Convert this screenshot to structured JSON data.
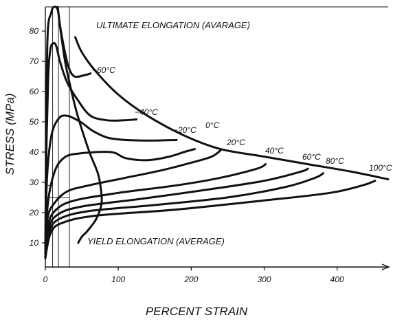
{
  "chart_data": {
    "type": "line",
    "title": "",
    "xlabel": "PERCENT STRAIN",
    "ylabel": "STRESS (MPa)",
    "xlim": [
      0,
      470
    ],
    "ylim": [
      2,
      88
    ],
    "x_ticks": [
      0,
      100,
      200,
      300,
      400
    ],
    "y_ticks": [
      10,
      20,
      30,
      40,
      50,
      60,
      70,
      80
    ],
    "grid": false,
    "annotations": [
      {
        "text": "ULTIMATE ELONGATION (AVARAGE)"
      },
      {
        "text": "YIELD ELONGATION (AVERAGE)"
      }
    ],
    "series": [
      {
        "name": "−60°C",
        "points": [
          [
            0,
            5
          ],
          [
            1,
            40
          ],
          [
            3,
            78
          ],
          [
            8,
            86
          ],
          [
            12,
            88
          ],
          [
            17,
            87
          ],
          [
            20,
            82
          ],
          [
            26,
            74
          ],
          [
            32,
            68
          ],
          [
            40,
            65
          ],
          [
            55,
            65.5
          ],
          [
            62,
            66
          ]
        ]
      },
      {
        "name": "−40°C",
        "points": [
          [
            0,
            5
          ],
          [
            1,
            35
          ],
          [
            4,
            65
          ],
          [
            7,
            74
          ],
          [
            11,
            76
          ],
          [
            15,
            75
          ],
          [
            20,
            70
          ],
          [
            30,
            63
          ],
          [
            45,
            57
          ],
          [
            62,
            52
          ],
          [
            85,
            50.5
          ],
          [
            108,
            50.5
          ],
          [
            125,
            50.8
          ]
        ]
      },
      {
        "name": "−20°C",
        "points": [
          [
            0,
            5
          ],
          [
            2,
            30
          ],
          [
            8,
            45
          ],
          [
            18,
            51
          ],
          [
            30,
            52
          ],
          [
            48,
            50
          ],
          [
            65,
            47
          ],
          [
            85,
            44.8
          ],
          [
            110,
            44
          ],
          [
            145,
            43.8
          ],
          [
            180,
            44
          ]
        ]
      },
      {
        "name": "0°C",
        "points": [
          [
            0,
            5
          ],
          [
            3,
            22
          ],
          [
            12,
            33
          ],
          [
            25,
            38
          ],
          [
            45,
            39.5
          ],
          [
            90,
            40
          ],
          [
            110,
            38
          ],
          [
            140,
            37.3
          ],
          [
            170,
            38.5
          ],
          [
            190,
            40
          ],
          [
            205,
            41
          ]
        ]
      },
      {
        "name": "20°C",
        "points": [
          [
            0,
            5
          ],
          [
            3,
            18
          ],
          [
            12,
            23
          ],
          [
            30,
            27
          ],
          [
            60,
            29
          ],
          [
            110,
            31.5
          ],
          [
            160,
            34
          ],
          [
            200,
            36.5
          ],
          [
            228,
            38.5
          ],
          [
            240,
            40.5
          ]
        ]
      },
      {
        "name": "40°C",
        "points": [
          [
            0,
            5
          ],
          [
            4,
            16
          ],
          [
            15,
            21
          ],
          [
            40,
            24
          ],
          [
            100,
            26.5
          ],
          [
            180,
            29
          ],
          [
            240,
            31.5
          ],
          [
            290,
            34.5
          ],
          [
            302,
            36
          ]
        ]
      },
      {
        "name": "60°C",
        "points": [
          [
            0,
            5
          ],
          [
            5,
            15
          ],
          [
            18,
            19.5
          ],
          [
            50,
            22
          ],
          [
            130,
            24.5
          ],
          [
            220,
            27.5
          ],
          [
            300,
            30.5
          ],
          [
            350,
            33.5
          ],
          [
            360,
            34.5
          ]
        ]
      },
      {
        "name": "80°C",
        "points": [
          [
            0,
            5
          ],
          [
            6,
            14
          ],
          [
            20,
            18
          ],
          [
            60,
            20.5
          ],
          [
            150,
            22.5
          ],
          [
            250,
            25
          ],
          [
            330,
            28.5
          ],
          [
            370,
            31.5
          ],
          [
            381,
            33
          ]
        ]
      },
      {
        "name": "100°C",
        "points": [
          [
            0,
            5
          ],
          [
            7,
            13
          ],
          [
            22,
            16.5
          ],
          [
            70,
            19
          ],
          [
            180,
            21
          ],
          [
            300,
            24
          ],
          [
            390,
            26.5
          ],
          [
            435,
            29
          ],
          [
            452,
            30.5
          ]
        ]
      },
      {
        "name": "",
        "points": [
          [
            41,
            78
          ],
          [
            50,
            73
          ],
          [
            68,
            67
          ],
          [
            100,
            59
          ],
          [
            140,
            52
          ],
          [
            190,
            45.5
          ],
          [
            240,
            41
          ],
          [
            300,
            38.5
          ],
          [
            360,
            36
          ],
          [
            420,
            33.5
          ],
          [
            470,
            31
          ]
        ]
      },
      {
        "name": "",
        "points": [
          [
            17,
            88
          ],
          [
            21,
            80
          ],
          [
            27,
            70
          ],
          [
            34,
            62
          ],
          [
            42,
            54
          ],
          [
            52,
            46
          ],
          [
            62,
            39
          ],
          [
            72,
            33
          ],
          [
            76,
            28
          ],
          [
            77,
            23
          ],
          [
            70,
            18
          ],
          [
            58,
            14
          ],
          [
            50,
            12
          ],
          [
            45,
            10
          ]
        ]
      }
    ],
    "series_labels": [
      "−60°C",
      "−40°C",
      "−20°C",
      "0°C",
      "20°C",
      "40°C",
      "60°C",
      "80°C",
      "100°C"
    ],
    "reference_lines": [
      {
        "x": 18,
        "y": 25
      },
      {
        "x": 33,
        "y": 25
      },
      {
        "x": 10,
        "y": 29
      }
    ]
  }
}
